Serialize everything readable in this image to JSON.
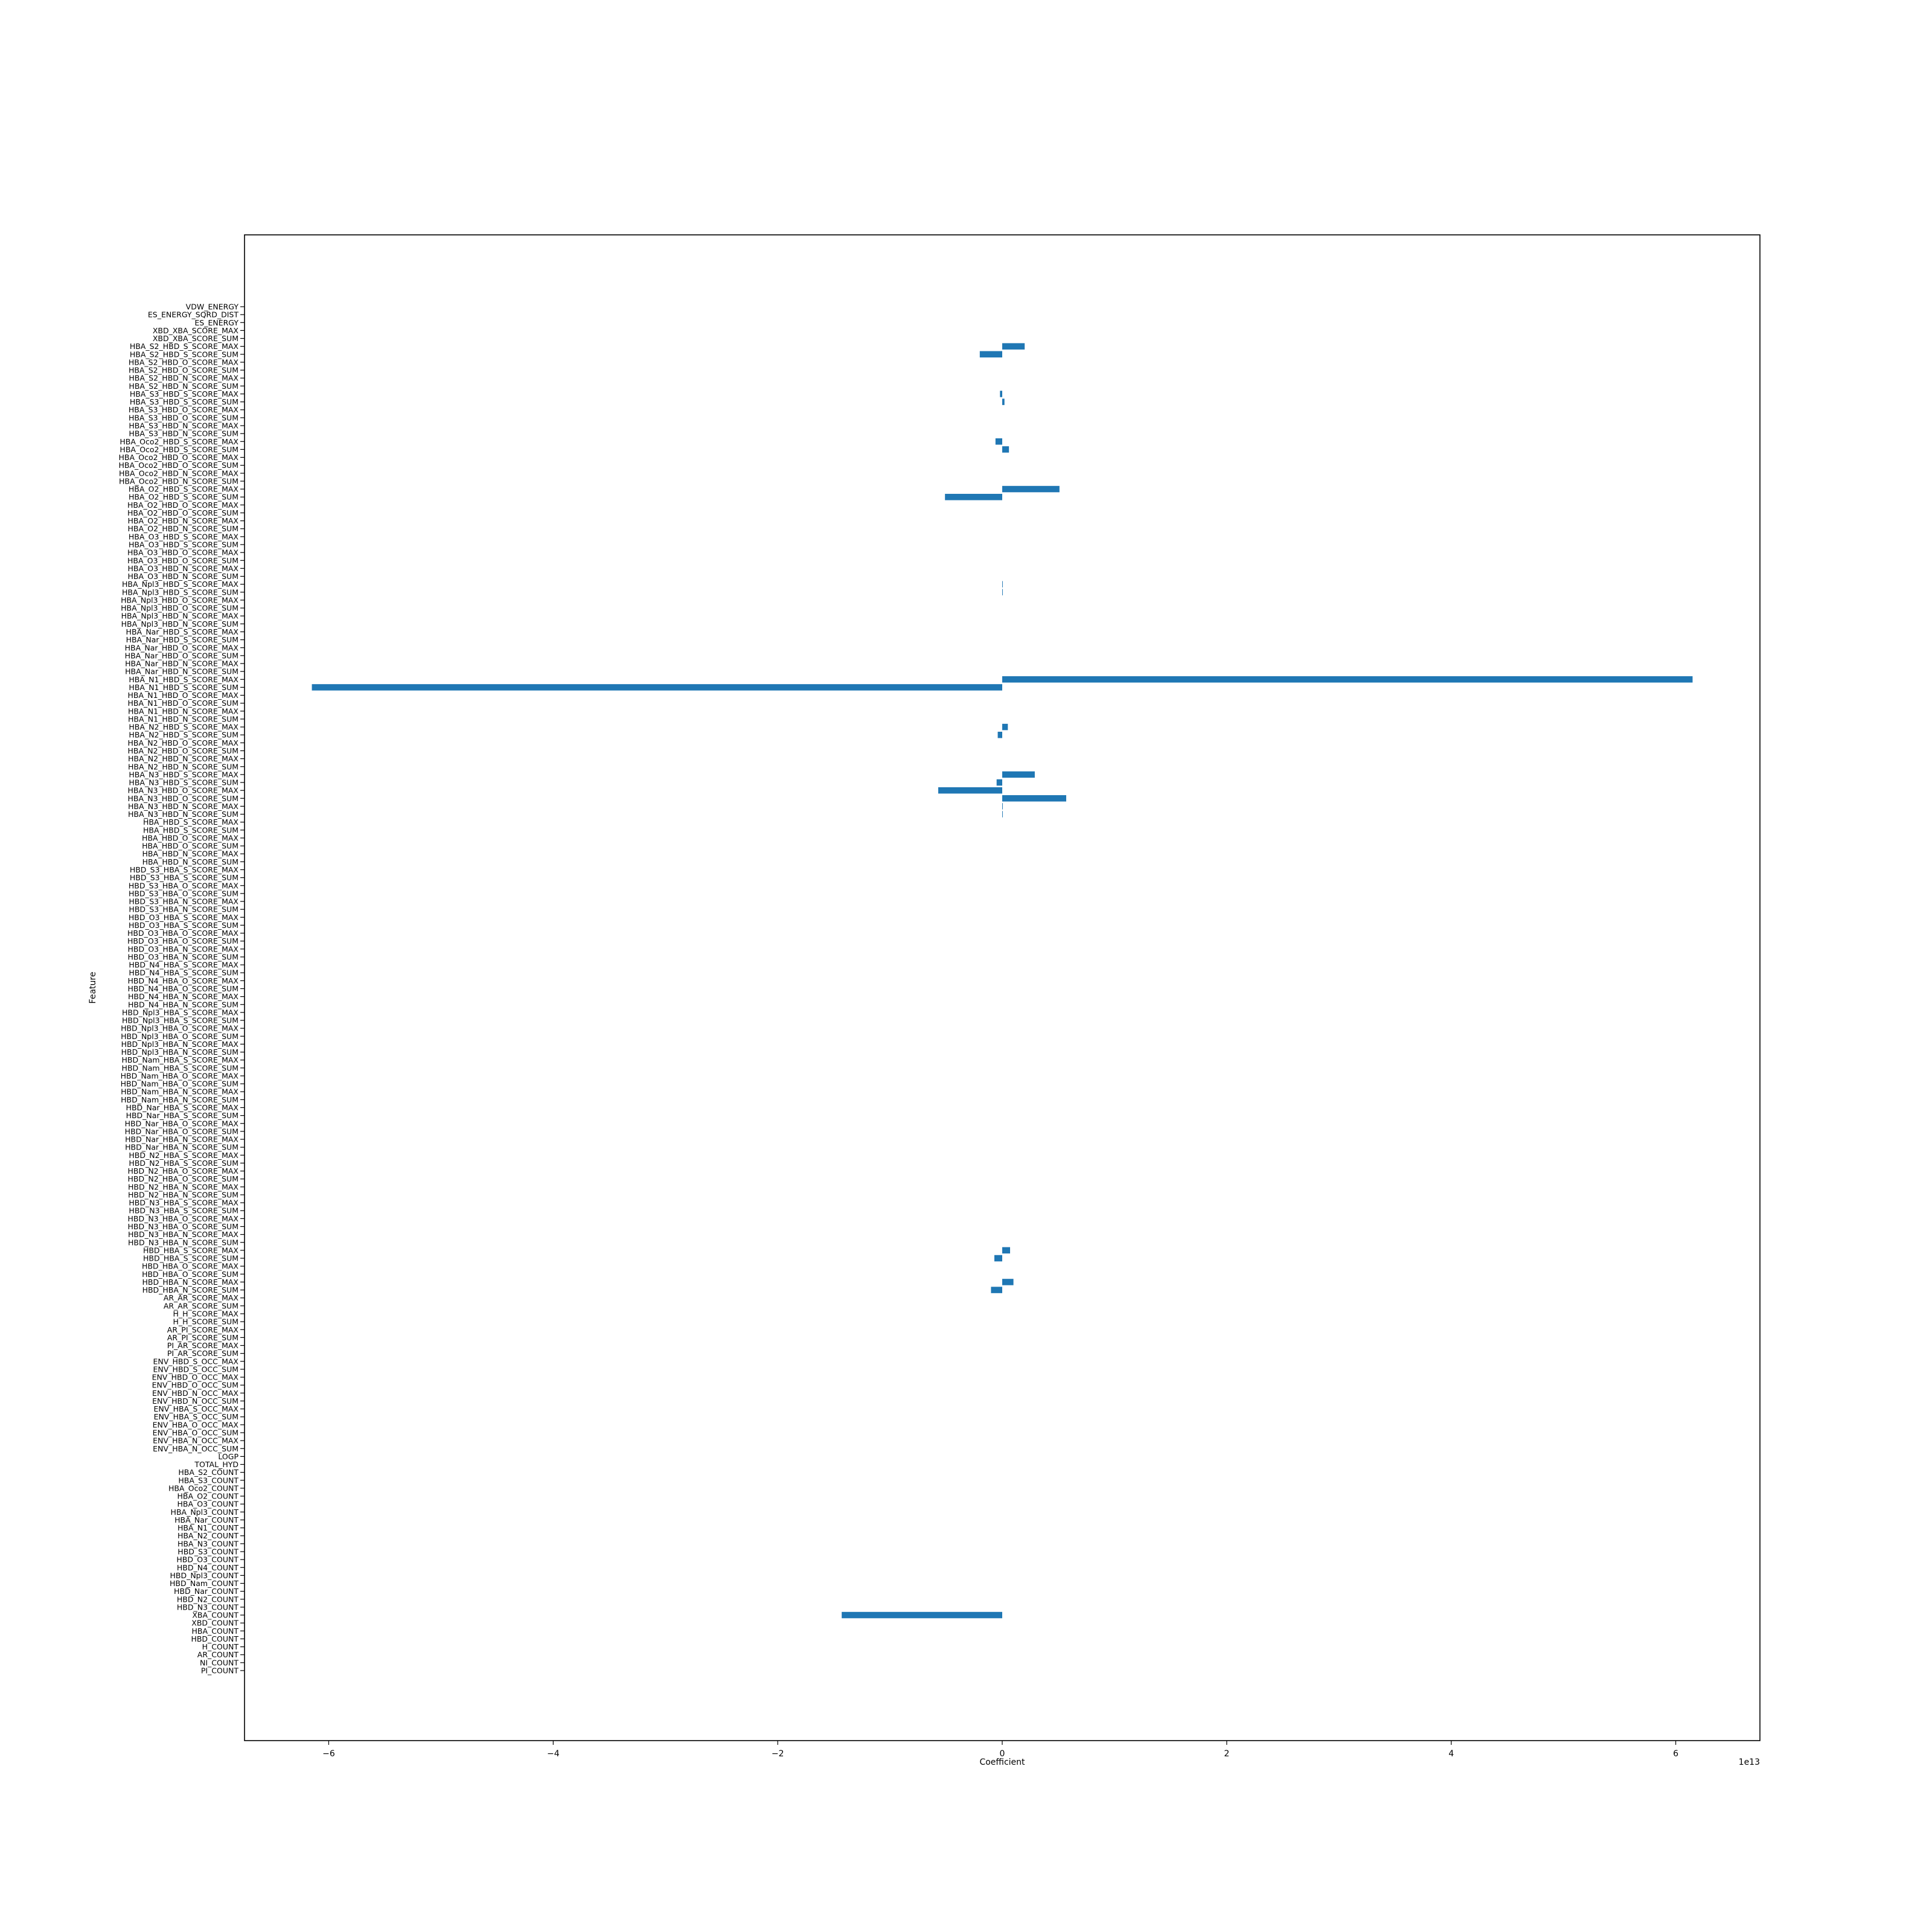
{
  "chart_data": {
    "type": "bar",
    "orientation": "horizontal",
    "title": "",
    "xlabel": "Coefficient",
    "ylabel": "Feature",
    "x_offset_text": "1e13",
    "xlim": [
      -6.75,
      6.75
    ],
    "xticks": [
      -6,
      -4,
      -2,
      0,
      2,
      4,
      6
    ],
    "xtick_labels": [
      "−6",
      "−4",
      "−2",
      "0",
      "2",
      "4",
      "6"
    ],
    "grid": false,
    "legend": "none",
    "bar_color": "#1f77b4",
    "categories": [
      "VDW_ENERGY",
      "ES_ENERGY_SQRD_DIST",
      "ES_ENERGY",
      "XBD_XBA_SCORE_MAX",
      "XBD_XBA_SCORE_SUM",
      "HBA_S2_HBD_S_SCORE_MAX",
      "HBA_S2_HBD_S_SCORE_SUM",
      "HBA_S2_HBD_O_SCORE_MAX",
      "HBA_S2_HBD_O_SCORE_SUM",
      "HBA_S2_HBD_N_SCORE_MAX",
      "HBA_S2_HBD_N_SCORE_SUM",
      "HBA_S3_HBD_S_SCORE_MAX",
      "HBA_S3_HBD_S_SCORE_SUM",
      "HBA_S3_HBD_O_SCORE_MAX",
      "HBA_S3_HBD_O_SCORE_SUM",
      "HBA_S3_HBD_N_SCORE_MAX",
      "HBA_S3_HBD_N_SCORE_SUM",
      "HBA_Oco2_HBD_S_SCORE_MAX",
      "HBA_Oco2_HBD_S_SCORE_SUM",
      "HBA_Oco2_HBD_O_SCORE_MAX",
      "HBA_Oco2_HBD_O_SCORE_SUM",
      "HBA_Oco2_HBD_N_SCORE_MAX",
      "HBA_Oco2_HBD_N_SCORE_SUM",
      "HBA_O2_HBD_S_SCORE_MAX",
      "HBA_O2_HBD_S_SCORE_SUM",
      "HBA_O2_HBD_O_SCORE_MAX",
      "HBA_O2_HBD_O_SCORE_SUM",
      "HBA_O2_HBD_N_SCORE_MAX",
      "HBA_O2_HBD_N_SCORE_SUM",
      "HBA_O3_HBD_S_SCORE_MAX",
      "HBA_O3_HBD_S_SCORE_SUM",
      "HBA_O3_HBD_O_SCORE_MAX",
      "HBA_O3_HBD_O_SCORE_SUM",
      "HBA_O3_HBD_N_SCORE_MAX",
      "HBA_O3_HBD_N_SCORE_SUM",
      "HBA_Npl3_HBD_S_SCORE_MAX",
      "HBA_Npl3_HBD_S_SCORE_SUM",
      "HBA_Npl3_HBD_O_SCORE_MAX",
      "HBA_Npl3_HBD_O_SCORE_SUM",
      "HBA_Npl3_HBD_N_SCORE_MAX",
      "HBA_Npl3_HBD_N_SCORE_SUM",
      "HBA_Nar_HBD_S_SCORE_MAX",
      "HBA_Nar_HBD_S_SCORE_SUM",
      "HBA_Nar_HBD_O_SCORE_MAX",
      "HBA_Nar_HBD_O_SCORE_SUM",
      "HBA_Nar_HBD_N_SCORE_MAX",
      "HBA_Nar_HBD_N_SCORE_SUM",
      "HBA_N1_HBD_S_SCORE_MAX",
      "HBA_N1_HBD_S_SCORE_SUM",
      "HBA_N1_HBD_O_SCORE_MAX",
      "HBA_N1_HBD_O_SCORE_SUM",
      "HBA_N1_HBD_N_SCORE_MAX",
      "HBA_N1_HBD_N_SCORE_SUM",
      "HBA_N2_HBD_S_SCORE_MAX",
      "HBA_N2_HBD_S_SCORE_SUM",
      "HBA_N2_HBD_O_SCORE_MAX",
      "HBA_N2_HBD_O_SCORE_SUM",
      "HBA_N2_HBD_N_SCORE_MAX",
      "HBA_N2_HBD_N_SCORE_SUM",
      "HBA_N3_HBD_S_SCORE_MAX",
      "HBA_N3_HBD_S_SCORE_SUM",
      "HBA_N3_HBD_O_SCORE_MAX",
      "HBA_N3_HBD_O_SCORE_SUM",
      "HBA_N3_HBD_N_SCORE_MAX",
      "HBA_N3_HBD_N_SCORE_SUM",
      "HBA_HBD_S_SCORE_MAX",
      "HBA_HBD_S_SCORE_SUM",
      "HBA_HBD_O_SCORE_MAX",
      "HBA_HBD_O_SCORE_SUM",
      "HBA_HBD_N_SCORE_MAX",
      "HBA_HBD_N_SCORE_SUM",
      "HBD_S3_HBA_S_SCORE_MAX",
      "HBD_S3_HBA_S_SCORE_SUM",
      "HBD_S3_HBA_O_SCORE_MAX",
      "HBD_S3_HBA_O_SCORE_SUM",
      "HBD_S3_HBA_N_SCORE_MAX",
      "HBD_S3_HBA_N_SCORE_SUM",
      "HBD_O3_HBA_S_SCORE_MAX",
      "HBD_O3_HBA_S_SCORE_SUM",
      "HBD_O3_HBA_O_SCORE_MAX",
      "HBD_O3_HBA_O_SCORE_SUM",
      "HBD_O3_HBA_N_SCORE_MAX",
      "HBD_O3_HBA_N_SCORE_SUM",
      "HBD_N4_HBA_S_SCORE_MAX",
      "HBD_N4_HBA_S_SCORE_SUM",
      "HBD_N4_HBA_O_SCORE_MAX",
      "HBD_N4_HBA_O_SCORE_SUM",
      "HBD_N4_HBA_N_SCORE_MAX",
      "HBD_N4_HBA_N_SCORE_SUM",
      "HBD_Npl3_HBA_S_SCORE_MAX",
      "HBD_Npl3_HBA_S_SCORE_SUM",
      "HBD_Npl3_HBA_O_SCORE_MAX",
      "HBD_Npl3_HBA_O_SCORE_SUM",
      "HBD_Npl3_HBA_N_SCORE_MAX",
      "HBD_Npl3_HBA_N_SCORE_SUM",
      "HBD_Nam_HBA_S_SCORE_MAX",
      "HBD_Nam_HBA_S_SCORE_SUM",
      "HBD_Nam_HBA_O_SCORE_MAX",
      "HBD_Nam_HBA_O_SCORE_SUM",
      "HBD_Nam_HBA_N_SCORE_MAX",
      "HBD_Nam_HBA_N_SCORE_SUM",
      "HBD_Nar_HBA_S_SCORE_MAX",
      "HBD_Nar_HBA_S_SCORE_SUM",
      "HBD_Nar_HBA_O_SCORE_MAX",
      "HBD_Nar_HBA_O_SCORE_SUM",
      "HBD_Nar_HBA_N_SCORE_MAX",
      "HBD_Nar_HBA_N_SCORE_SUM",
      "HBD_N2_HBA_S_SCORE_MAX",
      "HBD_N2_HBA_S_SCORE_SUM",
      "HBD_N2_HBA_O_SCORE_MAX",
      "HBD_N2_HBA_O_SCORE_SUM",
      "HBD_N2_HBA_N_SCORE_MAX",
      "HBD_N2_HBA_N_SCORE_SUM",
      "HBD_N3_HBA_S_SCORE_MAX",
      "HBD_N3_HBA_S_SCORE_SUM",
      "HBD_N3_HBA_O_SCORE_MAX",
      "HBD_N3_HBA_O_SCORE_SUM",
      "HBD_N3_HBA_N_SCORE_MAX",
      "HBD_N3_HBA_N_SCORE_SUM",
      "HBD_HBA_S_SCORE_MAX",
      "HBD_HBA_S_SCORE_SUM",
      "HBD_HBA_O_SCORE_MAX",
      "HBD_HBA_O_SCORE_SUM",
      "HBD_HBA_N_SCORE_MAX",
      "HBD_HBA_N_SCORE_SUM",
      "AR_AR_SCORE_MAX",
      "AR_AR_SCORE_SUM",
      "H_H_SCORE_MAX",
      "H_H_SCORE_SUM",
      "AR_PI_SCORE_MAX",
      "AR_PI_SCORE_SUM",
      "PI_AR_SCORE_MAX",
      "PI_AR_SCORE_SUM",
      "ENV_HBD_S_OCC_MAX",
      "ENV_HBD_S_OCC_SUM",
      "ENV_HBD_O_OCC_MAX",
      "ENV_HBD_O_OCC_SUM",
      "ENV_HBD_N_OCC_MAX",
      "ENV_HBD_N_OCC_SUM",
      "ENV_HBA_S_OCC_MAX",
      "ENV_HBA_S_OCC_SUM",
      "ENV_HBA_O_OCC_MAX",
      "ENV_HBA_O_OCC_SUM",
      "ENV_HBA_N_OCC_MAX",
      "ENV_HBA_N_OCC_SUM",
      "LOGP",
      "TOTAL_HYD",
      "HBA_S2_COUNT",
      "HBA_S3_COUNT",
      "HBA_Oco2_COUNT",
      "HBA_O2_COUNT",
      "HBA_O3_COUNT",
      "HBA_Npl3_COUNT",
      "HBA_Nar_COUNT",
      "HBA_N1_COUNT",
      "HBA_N2_COUNT",
      "HBA_N3_COUNT",
      "HBD_S3_COUNT",
      "HBD_O3_COUNT",
      "HBD_N4_COUNT",
      "HBD_Npl3_COUNT",
      "HBD_Nam_COUNT",
      "HBD_Nar_COUNT",
      "HBD_N2_COUNT",
      "HBD_N3_COUNT",
      "XBA_COUNT",
      "XBD_COUNT",
      "HBA_COUNT",
      "HBD_COUNT",
      "H_COUNT",
      "AR_COUNT",
      "NI_COUNT",
      "PI_COUNT"
    ],
    "values": [
      0,
      0,
      0,
      0,
      0,
      0.2,
      -0.2,
      0,
      0,
      0,
      0,
      -0.02,
      0.02,
      0,
      0,
      0,
      0,
      -0.06,
      0.06,
      0,
      0,
      0,
      0,
      0.51,
      -0.51,
      0,
      0,
      0,
      0,
      0,
      0,
      0,
      0,
      0,
      0,
      0.005,
      0.005,
      0,
      0,
      0,
      0,
      0,
      0,
      0,
      0,
      0,
      0,
      6.15,
      -6.15,
      0,
      0,
      0,
      0,
      0.05,
      -0.04,
      0,
      0,
      0,
      0,
      0.29,
      -0.05,
      -0.57,
      0.57,
      0.005,
      0.005,
      0,
      0,
      0,
      0,
      0,
      0,
      0,
      0,
      0,
      0,
      0,
      0,
      0,
      0,
      0,
      0,
      0,
      0,
      0,
      0,
      0,
      0,
      0,
      0,
      0,
      0,
      0,
      0,
      0,
      0,
      0,
      0,
      0,
      0,
      0,
      0,
      0,
      0,
      0,
      0,
      0,
      0,
      0,
      0,
      0,
      0,
      0,
      0,
      0,
      0,
      0,
      0,
      0,
      0,
      0.07,
      -0.07,
      0,
      0,
      0.1,
      -0.1,
      0,
      0,
      0,
      0,
      0,
      0,
      0,
      0,
      0,
      0,
      0,
      0,
      0,
      0,
      0,
      0,
      0,
      0,
      0,
      0,
      0,
      0,
      0,
      0,
      0,
      0,
      0,
      0,
      0,
      0,
      0,
      0,
      0,
      0,
      0,
      0,
      0,
      0,
      0,
      0,
      -1.43,
      0,
      0,
      0,
      0,
      0,
      0,
      0
    ]
  }
}
